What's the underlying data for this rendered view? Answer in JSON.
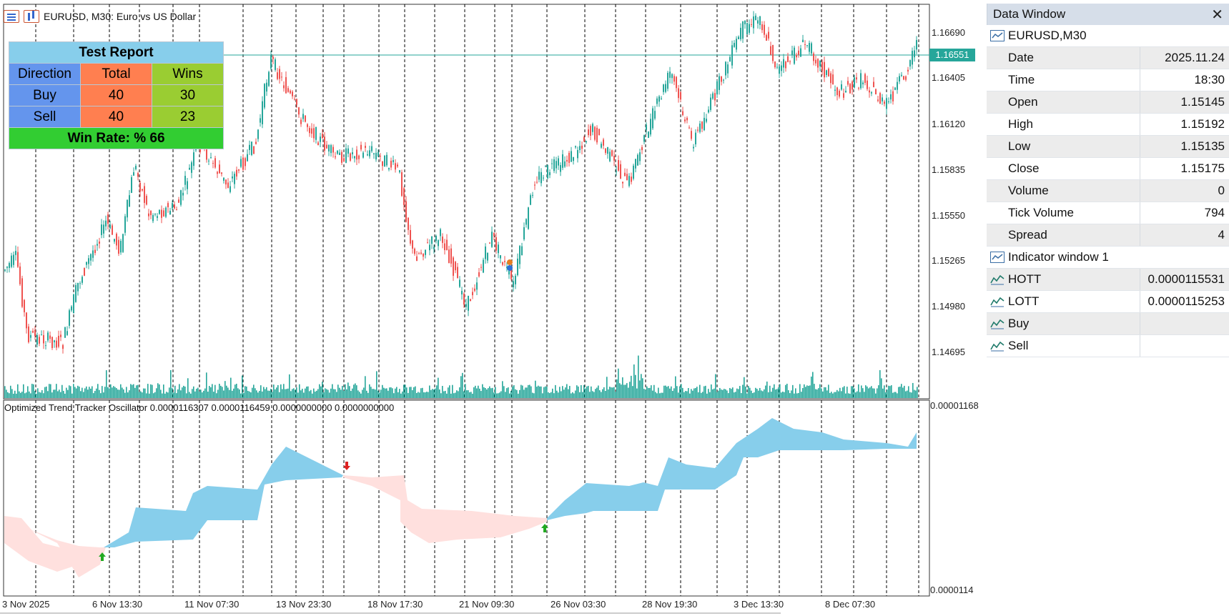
{
  "chart": {
    "symbol_title": "EURUSD, M30:  Euro vs US Dollar",
    "current_price_tag": "1.16551",
    "price_axis": [
      "1.16690",
      "1.16405",
      "1.16120",
      "1.15835",
      "1.15550",
      "1.15265",
      "1.14980",
      "1.14695"
    ],
    "oscillator_label": "Optimized Trend Tracker Oscillator 0.0000116307 0.0000116459 0.0000000000 0.0000000000",
    "osc_axis_top": "0.00001168",
    "osc_axis_bottom": "0.0000114",
    "time_axis": [
      "3 Nov 2025",
      "6 Nov 13:30",
      "11 Nov 07:30",
      "13 Nov 23:30",
      "18 Nov 17:30",
      "21 Nov 09:30",
      "26 Nov 03:30",
      "28 Nov 19:30",
      "3 Dec 13:30",
      "8 Dec 07:30"
    ],
    "colors": {
      "bull": "#26a69a",
      "bear": "#ef5350",
      "volume": "#26a69a",
      "osc_up": "#87ceeb",
      "osc_down": "#ffe0de",
      "buy_arrow": "#22aa22",
      "sell_arrow": "#dd2222"
    }
  },
  "test_report": {
    "title": "Test Report",
    "headers": [
      "Direction",
      "Total",
      "Wins"
    ],
    "rows": [
      {
        "direction": "Buy",
        "total": "40",
        "wins": "30"
      },
      {
        "direction": "Sell",
        "total": "40",
        "wins": "23"
      }
    ],
    "win_rate_label": "Win Rate: %  66"
  },
  "data_window": {
    "title": "Data Window",
    "symbol_row": "EURUSD,M30",
    "rows": [
      {
        "name": "Date",
        "value": "2025.11.24"
      },
      {
        "name": "Time",
        "value": "18:30"
      },
      {
        "name": "Open",
        "value": "1.15145"
      },
      {
        "name": "High",
        "value": "1.15192"
      },
      {
        "name": "Low",
        "value": "1.15135"
      },
      {
        "name": "Close",
        "value": "1.15175"
      },
      {
        "name": "Volume",
        "value": "0"
      },
      {
        "name": "Tick Volume",
        "value": "794"
      },
      {
        "name": "Spread",
        "value": "4"
      }
    ],
    "indicator_group": "Indicator window 1",
    "indicator_rows": [
      {
        "name": "HOTT",
        "value": "0.0000115531"
      },
      {
        "name": "LOTT",
        "value": "0.0000115253"
      },
      {
        "name": "Buy",
        "value": ""
      },
      {
        "name": "Sell",
        "value": ""
      }
    ]
  }
}
